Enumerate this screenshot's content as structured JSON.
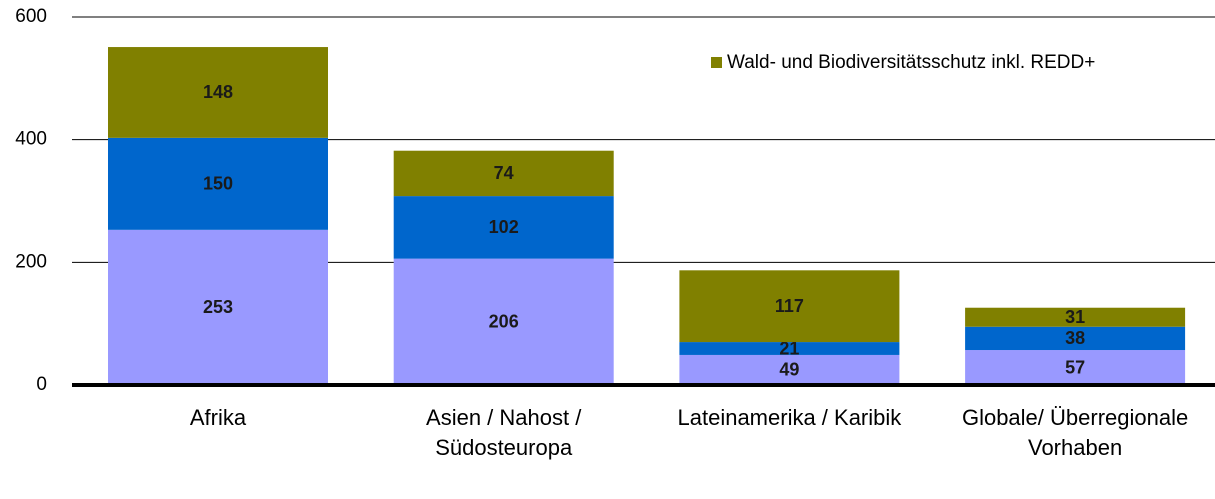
{
  "chart_data": {
    "type": "stacked_bar",
    "categories": [
      "Afrika",
      "Asien / Nahost / Südosteuropa",
      "Lateinamerika / Karibik",
      "Globale/ Überregionale Vorhaben"
    ],
    "series": [
      {
        "color": "#9999ff",
        "values": [
          253,
          206,
          49,
          57
        ]
      },
      {
        "color": "#0066cc",
        "values": [
          150,
          102,
          21,
          38
        ]
      },
      {
        "name": "Wald- und Biodiversitätsschutz inkl. REDD+",
        "color": "#808000",
        "values": [
          148,
          74,
          117,
          31
        ]
      }
    ],
    "ylim": [
      0,
      600
    ],
    "yticks": [
      0,
      200,
      400,
      600
    ],
    "grid": true,
    "legend": "top-right"
  }
}
